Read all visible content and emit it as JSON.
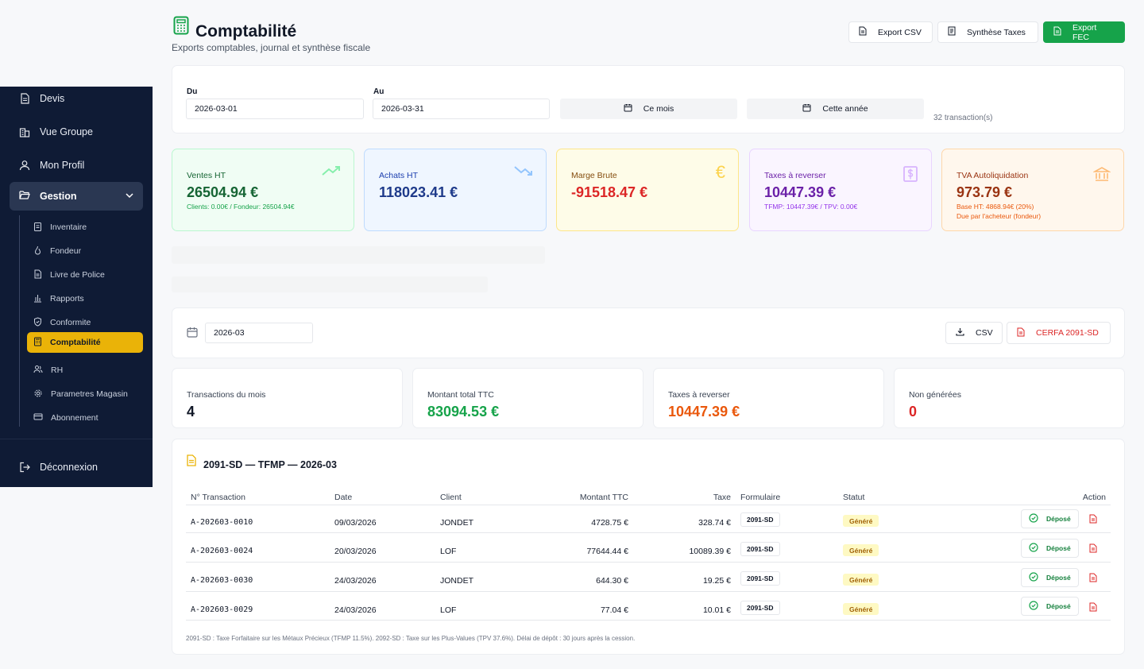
{
  "sidebar": {
    "items_top": [
      {
        "label": "Devis",
        "icon": "file-text-icon"
      },
      {
        "label": "Vue Groupe",
        "icon": "buildings-icon"
      },
      {
        "label": "Mon Profil",
        "icon": "user-icon"
      }
    ],
    "gestion": {
      "label": "Gestion",
      "icon": "folder-open-icon"
    },
    "sub_items": [
      {
        "label": "Inventaire",
        "icon": "clipboard-icon"
      },
      {
        "label": "Fondeur",
        "icon": "flame-icon"
      },
      {
        "label": "Livre de Police",
        "icon": "book-icon"
      },
      {
        "label": "Rapports",
        "icon": "bar-chart-icon"
      },
      {
        "label": "Conformite",
        "icon": "shield-check-icon"
      },
      {
        "label": "Comptabilité",
        "icon": "calculator-icon"
      },
      {
        "label": "RH",
        "icon": "users-icon"
      },
      {
        "label": "Parametres Magasin",
        "icon": "gear-icon"
      },
      {
        "label": "Abonnement",
        "icon": "credit-card-icon"
      }
    ],
    "logout": "Déconnexion"
  },
  "header": {
    "title": "Comptabilité",
    "subtitle": "Exports comptables, journal et synthèse fiscale",
    "export_csv": "Export CSV",
    "synthese": "Synthèse Taxes",
    "export_fec": "Export FEC"
  },
  "filter": {
    "du_label": "Du",
    "du_value": "2026-03-01",
    "au_label": "Au",
    "au_value": "2026-03-31",
    "ce_mois": "Ce mois",
    "cette_annee": "Cette année",
    "count": "32 transaction(s)"
  },
  "kpis": [
    {
      "title": "Ventes HT",
      "value": "26504.94 €",
      "sub": "Clients: 0.00€ / Fondeur: 26504.94€",
      "sub2": "",
      "icon": "trending-up-icon"
    },
    {
      "title": "Achats HT",
      "value": "118023.41 €",
      "sub": "",
      "sub2": "",
      "icon": "trending-down-icon"
    },
    {
      "title": "Marge Brute",
      "value": "-91518.47 €",
      "sub": "",
      "sub2": "",
      "icon": "euro-icon"
    },
    {
      "title": "Taxes à reverser",
      "value": "10447.39 €",
      "sub": "TFMP: 10447.39€ / TPV: 0.00€",
      "sub2": "",
      "icon": "dollar-receipt-icon"
    },
    {
      "title": "TVA Autoliquidation",
      "value": "973.79 €",
      "sub": "Base HT: 4868.94€ (20%)",
      "sub2": "Due par l'acheteur (fondeur)",
      "icon": "bank-icon"
    }
  ],
  "month_bar": {
    "month": "2026-03",
    "csv": "CSV",
    "cerfa": "CERFA 2091-SD"
  },
  "stats": [
    {
      "title": "Transactions du mois",
      "value": "4"
    },
    {
      "title": "Montant total TTC",
      "value": "83094.53 €"
    },
    {
      "title": "Taxes à reverser",
      "value": "10447.39 €"
    },
    {
      "title": "Non générées",
      "value": "0"
    }
  ],
  "table": {
    "title": "2091-SD — TFMP — 2026-03",
    "headers": [
      "N° Transaction",
      "Date",
      "Client",
      "Montant TTC",
      "Taxe",
      "Formulaire",
      "Statut",
      "Action"
    ],
    "rows": [
      {
        "id": "A-202603-0010",
        "date": "09/03/2026",
        "client": "JONDET",
        "montant": "4728.75 €",
        "taxe": "328.74 €",
        "form": "2091-SD",
        "statut": "Généré",
        "action": "Déposé"
      },
      {
        "id": "A-202603-0024",
        "date": "20/03/2026",
        "client": "LOF",
        "montant": "77644.44 €",
        "taxe": "10089.39 €",
        "form": "2091-SD",
        "statut": "Généré",
        "action": "Déposé"
      },
      {
        "id": "A-202603-0030",
        "date": "24/03/2026",
        "client": "JONDET",
        "montant": "644.30 €",
        "taxe": "19.25 €",
        "form": "2091-SD",
        "statut": "Généré",
        "action": "Déposé"
      },
      {
        "id": "A-202603-0029",
        "date": "24/03/2026",
        "client": "LOF",
        "montant": "77.04 €",
        "taxe": "10.01 €",
        "form": "2091-SD",
        "statut": "Généré",
        "action": "Déposé"
      }
    ],
    "footnote": "2091-SD : Taxe Forfaitaire sur les Métaux Précieux (TFMP 11.5%). 2092-SD : Taxe sur les Plus-Values (TPV 37.6%). Délai de dépôt : 30 jours après la cession."
  },
  "colors": {
    "sidebar_bg": "#0f1b35",
    "accent_yellow": "#eab308",
    "green": "#16a34a",
    "red": "#dc2626",
    "orange": "#ea580c"
  }
}
